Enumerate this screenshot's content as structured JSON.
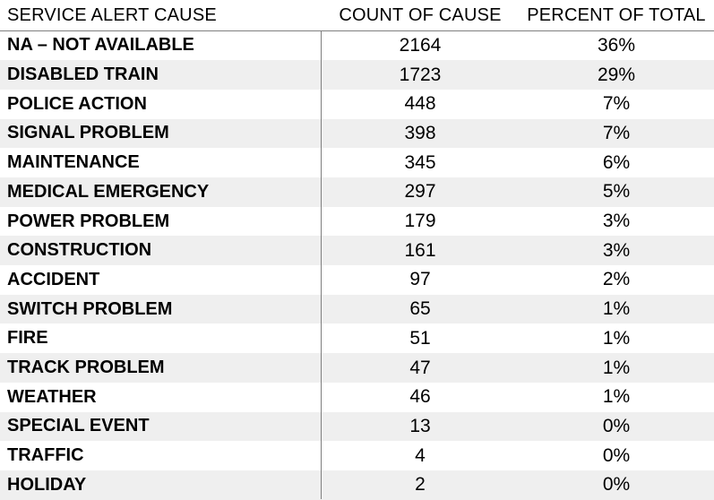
{
  "columns": {
    "cause": "SERVICE ALERT CAUSE",
    "count": "COUNT OF CAUSE",
    "percent": "PERCENT OF TOTAL"
  },
  "rows": [
    {
      "cause": "NA – NOT AVAILABLE",
      "count": "2164",
      "percent": "36%"
    },
    {
      "cause": "DISABLED TRAIN",
      "count": "1723",
      "percent": "29%"
    },
    {
      "cause": "POLICE ACTION",
      "count": "448",
      "percent": "7%"
    },
    {
      "cause": "SIGNAL PROBLEM",
      "count": "398",
      "percent": "7%"
    },
    {
      "cause": "MAINTENANCE",
      "count": "345",
      "percent": "6%"
    },
    {
      "cause": "MEDICAL EMERGENCY",
      "count": "297",
      "percent": "5%"
    },
    {
      "cause": "POWER PROBLEM",
      "count": "179",
      "percent": "3%"
    },
    {
      "cause": "CONSTRUCTION",
      "count": "161",
      "percent": "3%"
    },
    {
      "cause": "ACCIDENT",
      "count": "97",
      "percent": "2%"
    },
    {
      "cause": "SWITCH PROBLEM",
      "count": "65",
      "percent": "1%"
    },
    {
      "cause": "FIRE",
      "count": "51",
      "percent": "1%"
    },
    {
      "cause": "TRACK PROBLEM",
      "count": "47",
      "percent": "1%"
    },
    {
      "cause": "WEATHER",
      "count": "46",
      "percent": "1%"
    },
    {
      "cause": "SPECIAL EVENT",
      "count": "13",
      "percent": "0%"
    },
    {
      "cause": "TRAFFIC",
      "count": "4",
      "percent": "0%"
    },
    {
      "cause": "HOLIDAY",
      "count": "2",
      "percent": "0%"
    }
  ],
  "colors": {
    "shaded_row": "#efefef",
    "rule": "#7f7f7f"
  }
}
